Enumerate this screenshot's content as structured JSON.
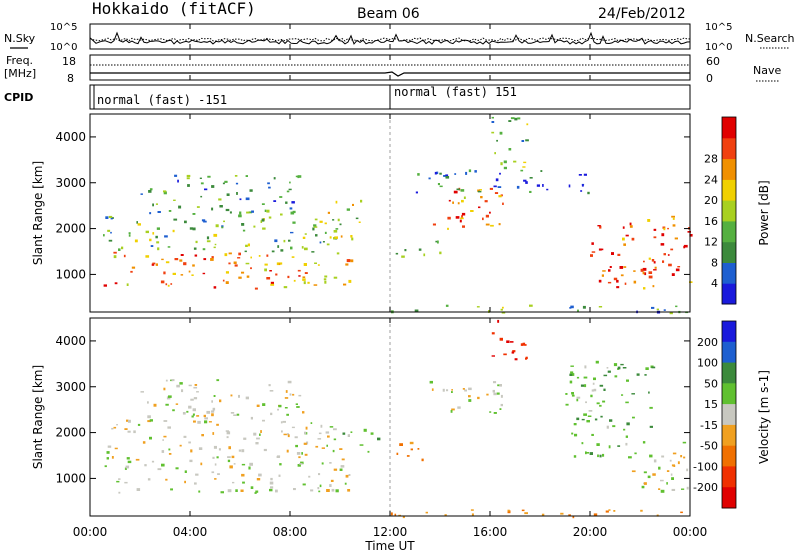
{
  "header": {
    "station": "Hokkaido (fitACF)",
    "beam": "Beam 06",
    "date": "24/Feb/2012"
  },
  "noise_panel": {
    "left_label": "N.Sky",
    "right_label": "N.Search",
    "left_ticks": [
      "10^5",
      "10^0"
    ],
    "right_ticks": [
      "10^5",
      "10^0"
    ]
  },
  "freq_panel": {
    "left_label_line1": "Freq.",
    "left_label_line2": "[MHz]",
    "right_label": "Nave",
    "left_ticks": [
      "18",
      "8"
    ],
    "right_ticks": [
      "60",
      "0"
    ]
  },
  "cpid_panel": {
    "label": "CPID",
    "mode_1": "normal (fast) -151",
    "mode_2": "normal (fast) 151"
  },
  "x_axis": {
    "label": "Time UT",
    "ticks": [
      "00:00",
      "04:00",
      "08:00",
      "12:00",
      "16:00",
      "20:00",
      "00:00"
    ]
  },
  "chart_data": [
    {
      "type": "heatmap",
      "title": "",
      "quantity": "Power",
      "ylabel": "Slant Range [km]",
      "xlabel": "",
      "y_ticks": [
        1000,
        2000,
        3000,
        4000
      ],
      "ylim": [
        180,
        4500
      ],
      "xlim_hours": [
        0,
        24
      ],
      "colorbar": {
        "label": "Power [dB]",
        "ticks": [
          4,
          8,
          12,
          16,
          20,
          24,
          28
        ],
        "colors": [
          "#1a1adc",
          "#1e5fd0",
          "#3c8a3c",
          "#55b040",
          "#a8d020",
          "#f0d000",
          "#f09000",
          "#f04010",
          "#e00000"
        ]
      },
      "echo_regions": [
        {
          "t0": 0.5,
          "t1": 10.5,
          "r0": 700,
          "r1": 1500,
          "power_db": 22
        },
        {
          "t0": 0.5,
          "t1": 10.0,
          "r0": 1500,
          "r1": 2300,
          "power_db": 12
        },
        {
          "t0": 2.0,
          "t1": 8.5,
          "r0": 2300,
          "r1": 3200,
          "power_db": 10
        },
        {
          "t0": 9.5,
          "t1": 11.0,
          "r0": 1800,
          "r1": 2700,
          "power_db": 14
        },
        {
          "t0": 12.2,
          "t1": 14.0,
          "r0": 1400,
          "r1": 1800,
          "power_db": 10
        },
        {
          "t0": 13.5,
          "t1": 16.5,
          "r0": 2000,
          "r1": 3000,
          "power_db": 22
        },
        {
          "t0": 13.0,
          "t1": 20.0,
          "r0": 2800,
          "r1": 3300,
          "power_db": 6
        },
        {
          "t0": 16.0,
          "t1": 17.5,
          "r0": 3300,
          "r1": 4500,
          "power_db": 12
        },
        {
          "t0": 20.0,
          "t1": 24.0,
          "r0": 700,
          "r1": 2300,
          "power_db": 26
        },
        {
          "t0": 12.0,
          "t1": 24.0,
          "r0": 180,
          "r1": 350,
          "power_db": 10
        }
      ]
    },
    {
      "type": "heatmap",
      "title": "",
      "quantity": "Velocity",
      "ylabel": "Slant Range [km]",
      "xlabel": "Time UT",
      "y_ticks": [
        1000,
        2000,
        3000,
        4000
      ],
      "ylim": [
        180,
        4500
      ],
      "xlim_hours": [
        0,
        24
      ],
      "colorbar": {
        "label": "Velocity [m s-1]",
        "ticks": [
          200,
          100,
          50,
          15,
          -15,
          -50,
          -100,
          -200
        ],
        "colors": [
          "#1a1adc",
          "#1e5fd0",
          "#3c8a3c",
          "#60c030",
          "#c8c8c0",
          "#f0a020",
          "#f07000",
          "#f03000",
          "#e00000"
        ]
      },
      "echo_regions": [
        {
          "t0": 0.5,
          "t1": 10.5,
          "r0": 700,
          "r1": 1500,
          "velocity": 0
        },
        {
          "t0": 0.5,
          "t1": 10.0,
          "r0": 1500,
          "r1": 2300,
          "velocity": 0
        },
        {
          "t0": 2.0,
          "t1": 8.5,
          "r0": 2300,
          "r1": 3200,
          "velocity": 0
        },
        {
          "t0": 10.0,
          "t1": 11.5,
          "r0": 1600,
          "r1": 2100,
          "velocity": 40
        },
        {
          "t0": 12.0,
          "t1": 13.5,
          "r0": 1400,
          "r1": 1800,
          "velocity": -60
        },
        {
          "t0": 13.5,
          "t1": 16.5,
          "r0": 2400,
          "r1": 3200,
          "velocity": 0
        },
        {
          "t0": 16.0,
          "t1": 17.5,
          "r0": 3600,
          "r1": 4500,
          "velocity": -200
        },
        {
          "t0": 19.0,
          "t1": 22.5,
          "r0": 1500,
          "r1": 3600,
          "velocity": 40
        },
        {
          "t0": 21.5,
          "t1": 24.0,
          "r0": 700,
          "r1": 1800,
          "velocity": 0
        },
        {
          "t0": 12.0,
          "t1": 24.0,
          "r0": 180,
          "r1": 350,
          "velocity": -50
        }
      ]
    }
  ]
}
